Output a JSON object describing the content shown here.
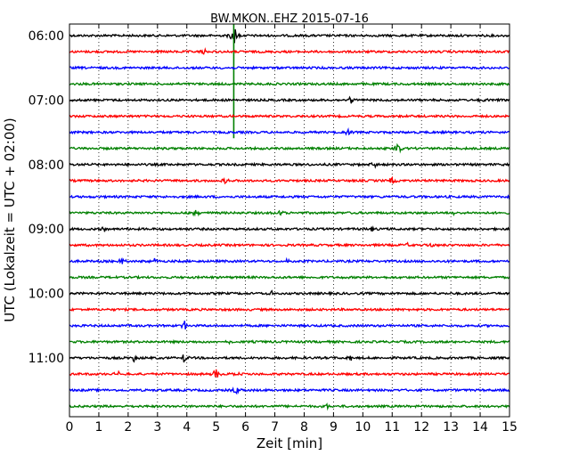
{
  "chart_data": {
    "type": "line",
    "title": "BW.MKON..EHZ 2015-07-16",
    "xlabel": "Zeit  [min]",
    "ylabel": "UTC (Lokalzeit = UTC + 02:00)",
    "xlim": [
      0,
      15
    ],
    "x_ticks": [
      "0",
      "1",
      "2",
      "3",
      "4",
      "5",
      "6",
      "7",
      "8",
      "9",
      "10",
      "11",
      "12",
      "13",
      "14",
      "15"
    ],
    "y_tick_labels": [
      "06:00",
      "07:00",
      "08:00",
      "09:00",
      "10:00",
      "11:00"
    ],
    "grid": "vertical-dotted",
    "trace_interval_minutes": 15,
    "trace_start_times": [
      "06:00",
      "06:15",
      "06:30",
      "06:45",
      "07:00",
      "07:15",
      "07:30",
      "07:45",
      "08:00",
      "08:15",
      "08:30",
      "08:45",
      "09:00",
      "09:15",
      "09:30",
      "09:45",
      "10:00",
      "10:15",
      "10:30",
      "10:45",
      "11:00",
      "11:15",
      "11:30",
      "11:45"
    ],
    "trace_color_cycle": [
      "#000000",
      "#ff0000",
      "#0000ff",
      "#008000"
    ],
    "events": [
      {
        "trace": 0,
        "minute": 5.6,
        "amplitude": 1.8
      },
      {
        "trace": 1,
        "minute": 4.6,
        "amplitude": 0.5
      },
      {
        "trace": 4,
        "minute": 9.6,
        "amplitude": 0.5
      },
      {
        "trace": 4,
        "minute": 14.1,
        "amplitude": 0.4
      },
      {
        "trace": 6,
        "minute": 9.5,
        "amplitude": 0.5
      },
      {
        "trace": 7,
        "minute": 11.2,
        "amplitude": 1.0
      },
      {
        "trace": 8,
        "minute": 10.4,
        "amplitude": 0.5
      },
      {
        "trace": 9,
        "minute": 5.3,
        "amplitude": 0.4
      },
      {
        "trace": 9,
        "minute": 11.0,
        "amplitude": 0.8
      },
      {
        "trace": 11,
        "minute": 4.3,
        "amplitude": 0.5
      },
      {
        "trace": 11,
        "minute": 7.2,
        "amplitude": 0.4
      },
      {
        "trace": 11,
        "minute": 13.1,
        "amplitude": 0.4
      },
      {
        "trace": 12,
        "minute": 1.2,
        "amplitude": 0.3
      },
      {
        "trace": 12,
        "minute": 10.3,
        "amplitude": 0.3
      },
      {
        "trace": 13,
        "minute": 11.5,
        "amplitude": 0.3
      },
      {
        "trace": 13,
        "minute": 12.3,
        "amplitude": 0.3
      },
      {
        "trace": 14,
        "minute": 1.8,
        "amplitude": 0.5
      },
      {
        "trace": 14,
        "minute": 2.9,
        "amplitude": 0.4
      },
      {
        "trace": 14,
        "minute": 7.4,
        "amplitude": 0.3
      },
      {
        "trace": 16,
        "minute": 6.9,
        "amplitude": 0.3
      },
      {
        "trace": 18,
        "minute": 3.9,
        "amplitude": 0.8
      },
      {
        "trace": 19,
        "minute": 5.5,
        "amplitude": 0.3
      },
      {
        "trace": 20,
        "minute": 2.2,
        "amplitude": 0.5
      },
      {
        "trace": 20,
        "minute": 3.9,
        "amplitude": 0.7
      },
      {
        "trace": 20,
        "minute": 9.6,
        "amplitude": 0.4
      },
      {
        "trace": 21,
        "minute": 1.7,
        "amplitude": 0.5
      },
      {
        "trace": 21,
        "minute": 5.0,
        "amplitude": 0.8
      },
      {
        "trace": 21,
        "minute": 5.7,
        "amplitude": 0.4
      },
      {
        "trace": 22,
        "minute": 5.7,
        "amplitude": 0.6
      },
      {
        "trace": 23,
        "minute": 8.8,
        "amplitude": 0.4
      }
    ]
  }
}
